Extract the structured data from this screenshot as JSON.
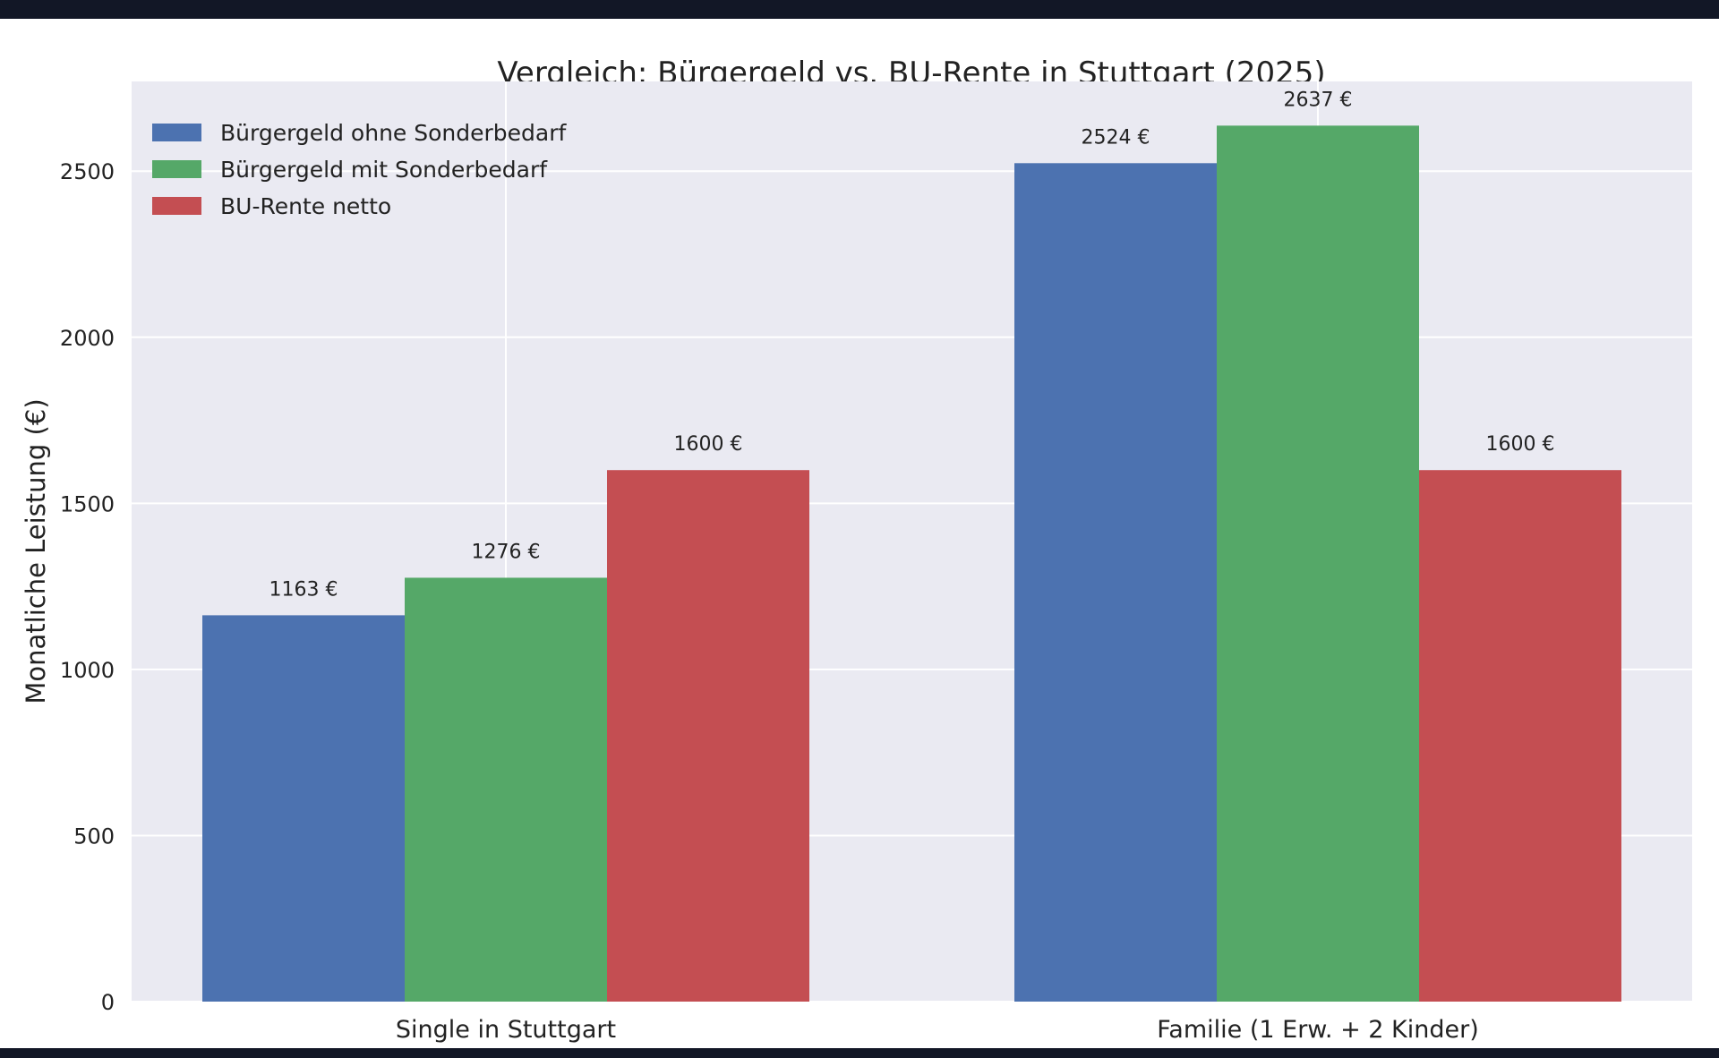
{
  "chart_data": {
    "type": "bar",
    "title": "Vergleich: Bürgergeld vs. BU-Rente in Stuttgart (2025)",
    "xlabel": "",
    "ylabel": "Monatliche Leistung (€)",
    "categories": [
      "Single in Stuttgart",
      "Familie (1 Erw. + 2 Kinder)"
    ],
    "series": [
      {
        "name": "Bürgergeld ohne Sonderbedarf",
        "color": "#4c72b0",
        "values": [
          1163,
          2524
        ]
      },
      {
        "name": "Bürgergeld mit Sonderbedarf",
        "color": "#55a868",
        "values": [
          1276,
          2637
        ]
      },
      {
        "name": "BU-Rente netto",
        "color": "#c44e52",
        "values": [
          1600,
          1600
        ]
      }
    ],
    "value_suffix": " €",
    "ylim": [
      0,
      2770
    ],
    "yticks": [
      0,
      500,
      1000,
      1500,
      2000,
      2500
    ],
    "grid": true,
    "legend_position": "top-left",
    "background_color": "#eaeaf2"
  }
}
